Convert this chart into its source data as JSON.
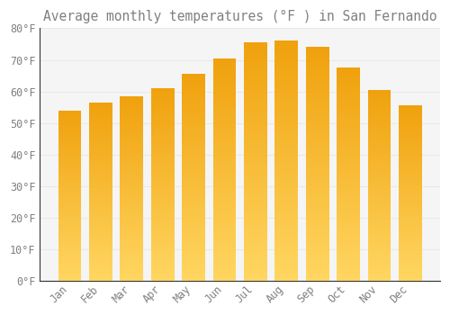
{
  "title": "Average monthly temperatures (°F ) in San Fernando",
  "months": [
    "Jan",
    "Feb",
    "Mar",
    "Apr",
    "May",
    "Jun",
    "Jul",
    "Aug",
    "Sep",
    "Oct",
    "Nov",
    "Dec"
  ],
  "values": [
    54.0,
    56.5,
    58.5,
    61.0,
    65.5,
    70.5,
    75.5,
    76.0,
    74.0,
    67.5,
    60.5,
    55.5
  ],
  "bar_color_bottom": "#FFD060",
  "bar_color_top": "#F0A000",
  "background_color": "#ffffff",
  "plot_bg_color": "#f5f5f5",
  "grid_color": "#e8e8e8",
  "text_color": "#808080",
  "axis_color": "#333333",
  "ylim": [
    0,
    80
  ],
  "ytick_step": 10,
  "title_fontsize": 10.5,
  "tick_fontsize": 8.5,
  "bar_width": 0.75,
  "figsize": [
    5.0,
    3.5
  ],
  "dpi": 100
}
